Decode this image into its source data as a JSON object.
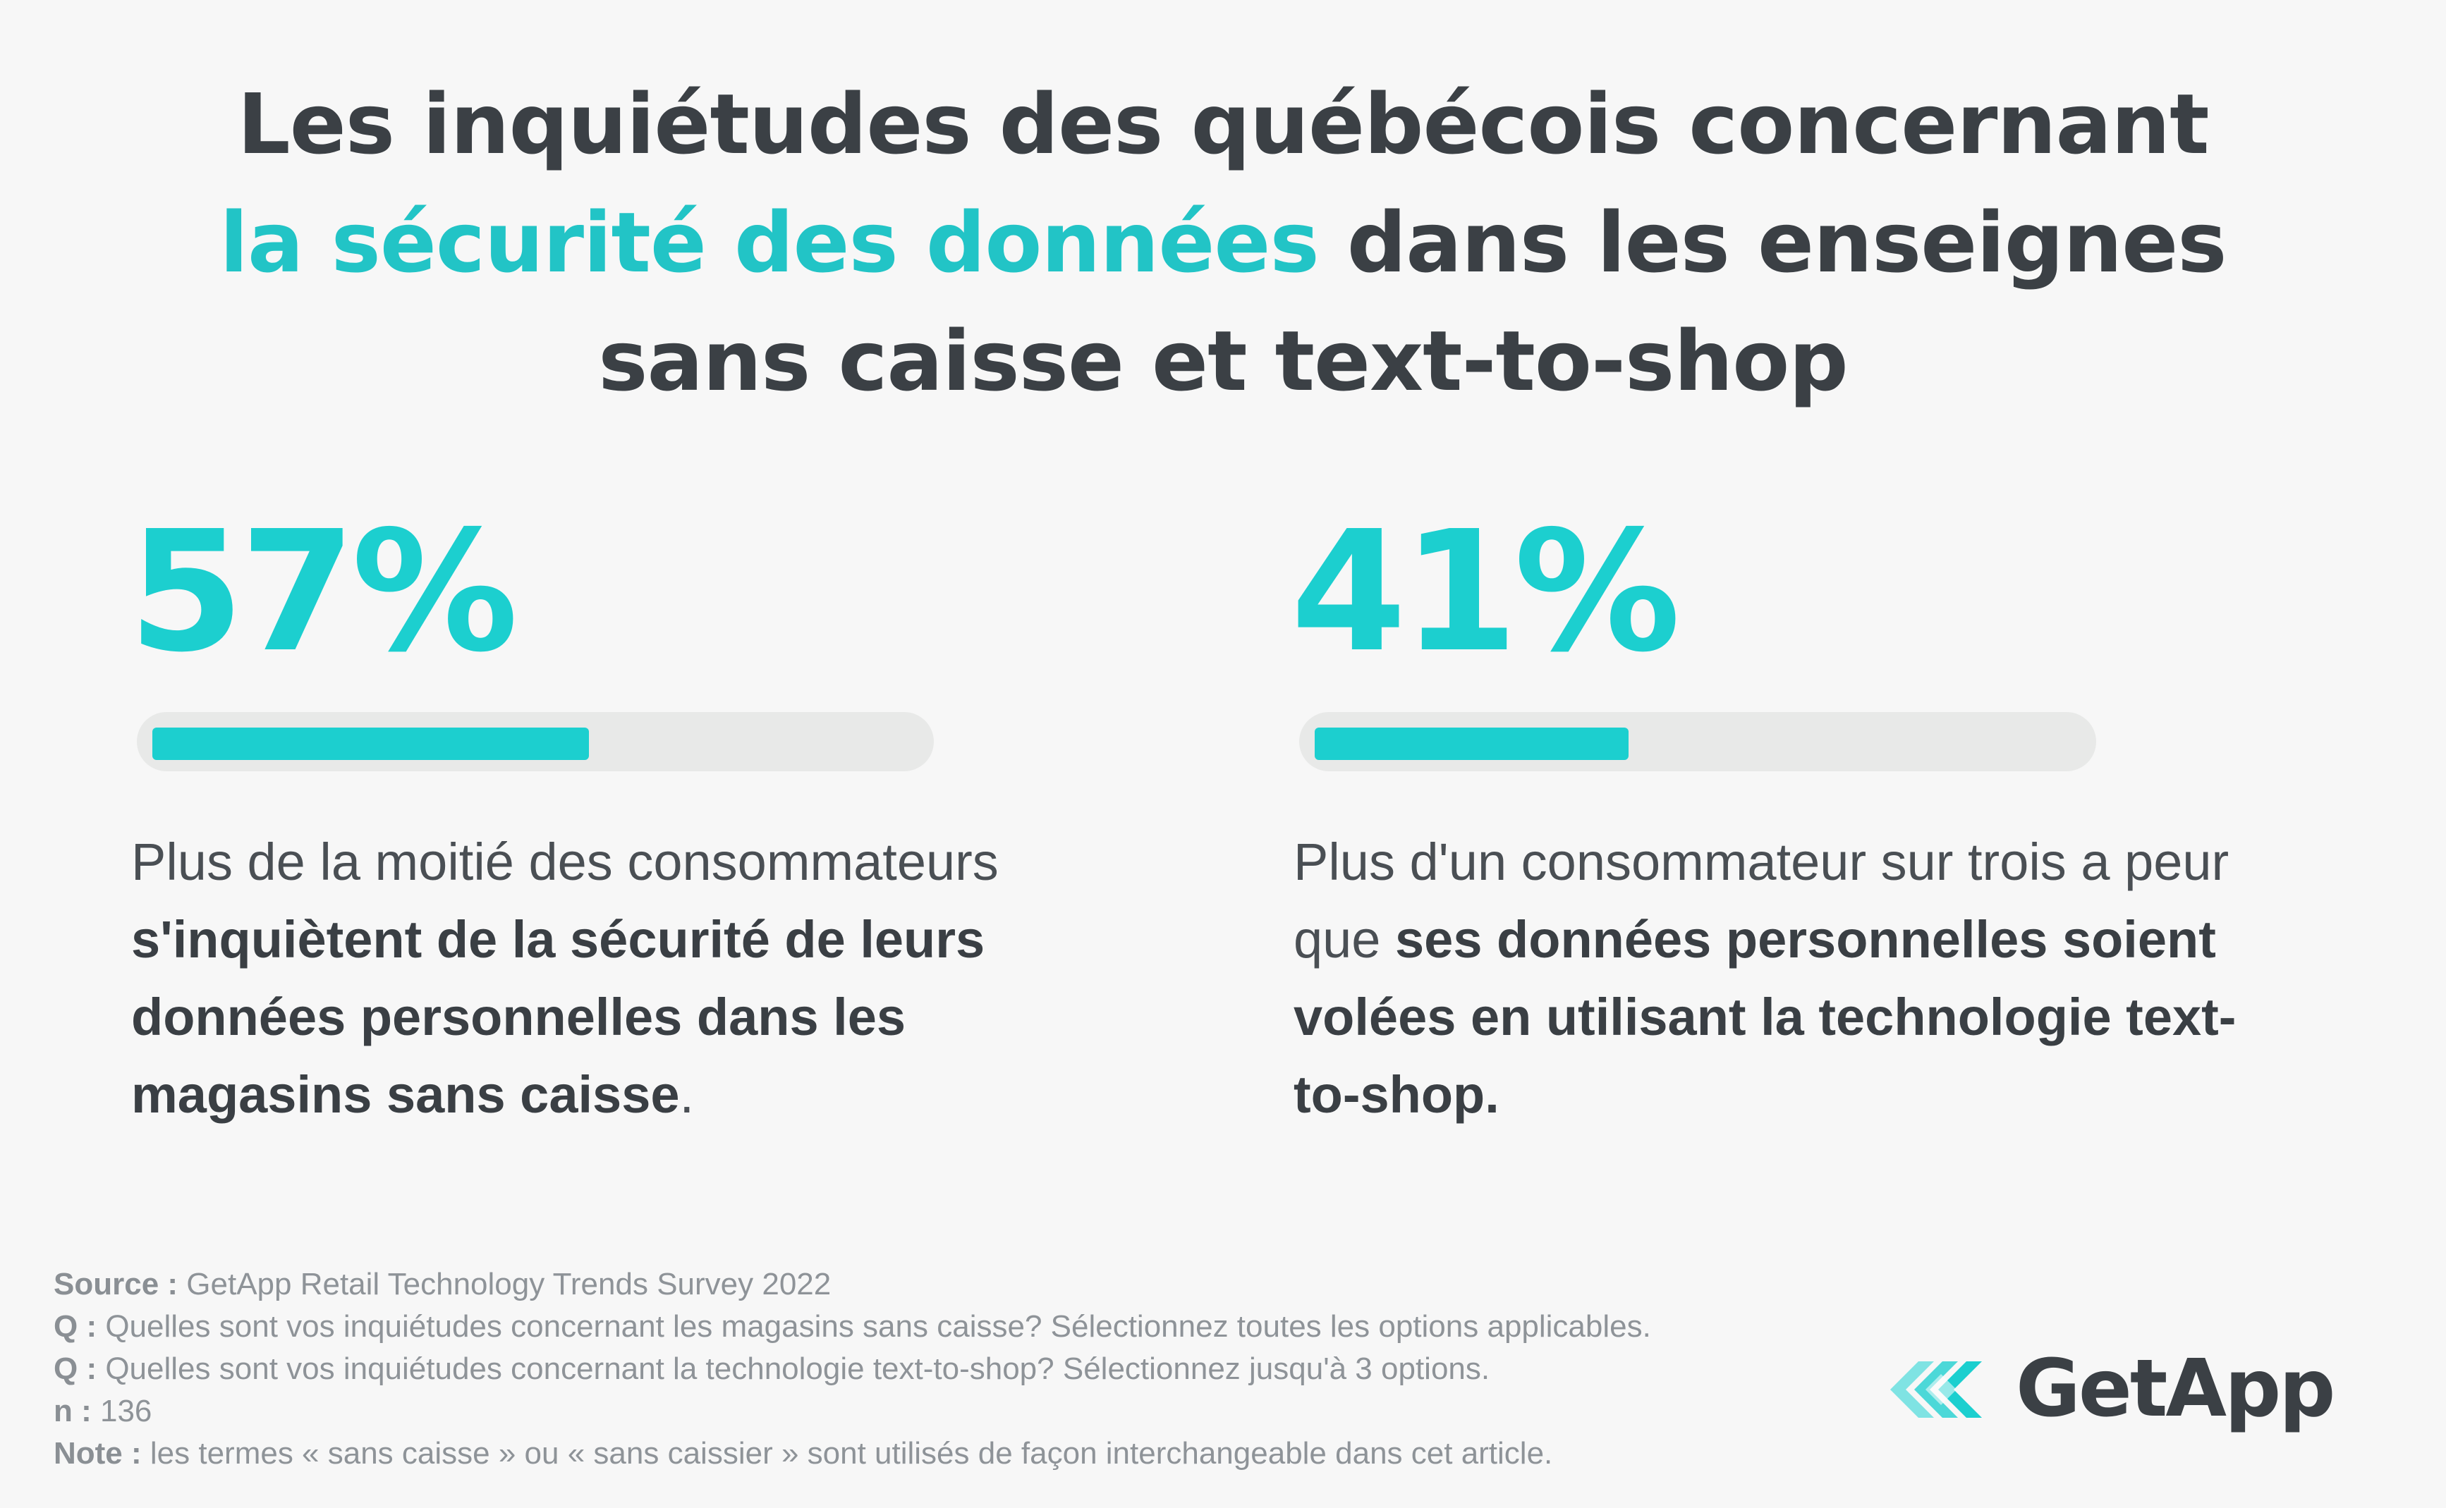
{
  "title": {
    "line1": "Les inquiétudes des québécois concernant",
    "line2_accent": "la sécurité des données",
    "line2_rest": " dans les enseignes",
    "line3": "sans caisse et text-to-shop"
  },
  "colors": {
    "accent": "#1ccfcf",
    "text": "#3b4045",
    "track": "#e8e9e8",
    "background": "#f7f7f7"
  },
  "stats": [
    {
      "percent_label": "57%",
      "progress": 0.57,
      "desc_plain1": "Plus de la moitié des consommateurs ",
      "desc_bold": "s'inquiètent de la sécurité de leurs données personnelles dans les magasins sans caisse",
      "desc_plain2": "."
    },
    {
      "percent_label": "41%",
      "progress": 0.41,
      "desc_plain1": "Plus d'un consommateur sur trois a peur que ",
      "desc_bold": "ses données personnelles soient volées en utilisant la technologie text-to-shop.",
      "desc_plain2": ""
    }
  ],
  "footer": {
    "source_label": "Source :",
    "source_text": " GetApp Retail Technology Trends Survey 2022",
    "q1_label": "Q :",
    "q1_text": " Quelles sont vos inquiétudes concernant les magasins sans caisse? Sélectionnez toutes les options applicables.",
    "q2_label": "Q :",
    "q2_text": " Quelles sont vos inquiétudes concernant la technologie text-to-shop? Sélectionnez jusqu'à 3 options.",
    "n_label": "n :",
    "n_text": " 136",
    "note_label": "Note :",
    "note_text": " les termes « sans caisse » ou « sans caissier » sont utilisés de façon interchangeable dans cet article."
  },
  "logo": {
    "text": "GetApp",
    "icon": "getapp-chevrons-icon"
  }
}
